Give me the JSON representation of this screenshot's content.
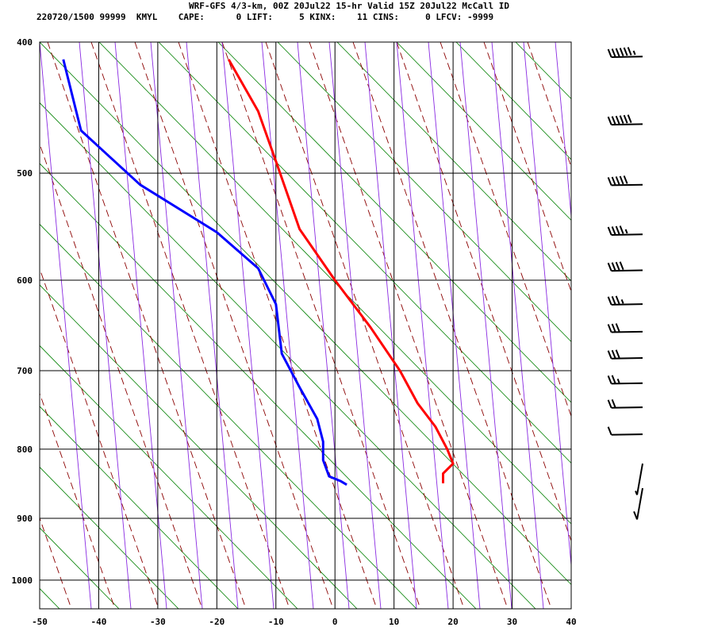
{
  "header": {
    "title": "WRF-GFS 4/3-km, 00Z 20Jul22 15-hr Valid 15Z 20Jul22 McCall ID",
    "station_line": "220720/1500 99999  KMYL    CAPE:      0 LIFT:     5 KINX:    11 CINS:     0 LFCV: -9999"
  },
  "chart_data": {
    "type": "line",
    "title": "WRF-GFS 4/3-km, 00Z 20Jul22 15-hr Valid 15Z 20Jul22 McCall ID",
    "xlabel": "",
    "ylabel": "",
    "x_axis": {
      "ticks": [
        -50,
        -40,
        -30,
        -20,
        -10,
        0,
        10,
        20,
        30,
        40
      ],
      "range": [
        -50,
        40
      ]
    },
    "y_axis": {
      "ticks": [
        400,
        500,
        600,
        700,
        800,
        900,
        1000
      ],
      "range": [
        400,
        1050
      ],
      "scale": "log-pressure"
    },
    "grid": true,
    "series": [
      {
        "color": "#ff0000",
        "points": [
          [
            -18,
            412
          ],
          [
            -13,
            450
          ],
          [
            -10,
            490
          ],
          [
            -6,
            550
          ],
          [
            0,
            600
          ],
          [
            6,
            650
          ],
          [
            11,
            700
          ],
          [
            14,
            740
          ],
          [
            17,
            770
          ],
          [
            19,
            800
          ],
          [
            20,
            820
          ],
          [
            18.3,
            834
          ],
          [
            18.3,
            848
          ]
        ]
      },
      {
        "color": "#0000ff",
        "points": [
          [
            -46,
            412
          ],
          [
            -43,
            465
          ],
          [
            -33,
            510
          ],
          [
            -20,
            553
          ],
          [
            -13,
            588
          ],
          [
            -10,
            625
          ],
          [
            -9,
            680
          ],
          [
            -6,
            720
          ],
          [
            -3,
            760
          ],
          [
            -2,
            790
          ],
          [
            -2,
            815
          ],
          [
            -1,
            838
          ],
          [
            1,
            845
          ],
          [
            2,
            850
          ]
        ]
      }
    ],
    "wind_barbs": [
      {
        "pressure": 410,
        "speed_kt": 65
      },
      {
        "pressure": 460,
        "speed_kt": 60
      },
      {
        "pressure": 510,
        "speed_kt": 50
      },
      {
        "pressure": 555,
        "speed_kt": 45
      },
      {
        "pressure": 590,
        "speed_kt": 40
      },
      {
        "pressure": 625,
        "speed_kt": 35
      },
      {
        "pressure": 655,
        "speed_kt": 30
      },
      {
        "pressure": 685,
        "speed_kt": 30
      },
      {
        "pressure": 715,
        "speed_kt": 25
      },
      {
        "pressure": 745,
        "speed_kt": 20
      },
      {
        "pressure": 780,
        "speed_kt": 10
      },
      {
        "pressure": 820,
        "speed_kt": 5
      },
      {
        "pressure": 855,
        "speed_kt": 10
      }
    ],
    "colors": {
      "grid": "#000000",
      "dry_adiabats": "#008000",
      "moist_adiabats": "#8b0000",
      "mixing_ratio": "#8a2be2"
    }
  }
}
